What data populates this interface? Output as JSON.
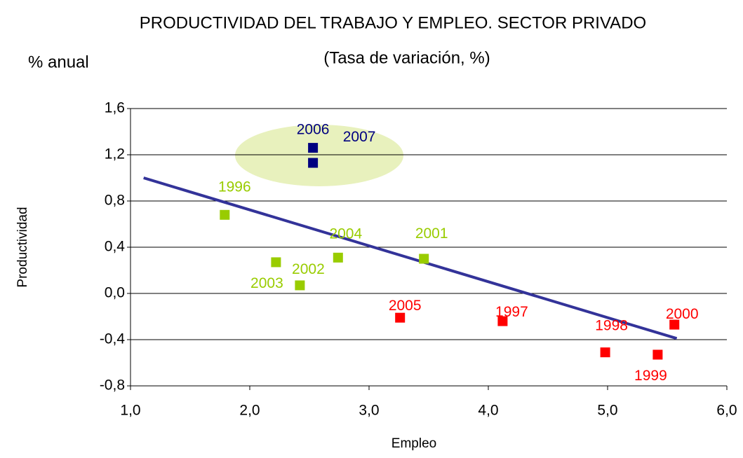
{
  "chart_data": {
    "type": "scatter",
    "title": "PRODUCTIVIDAD DEL TRABAJO Y EMPLEO. SECTOR PRIVADO",
    "subtitle": "(Tasa de variación, %)",
    "unit_label": "% anual",
    "x_label": "Empleo",
    "y_label": "Productividad",
    "xlim": [
      1,
      6
    ],
    "ylim": [
      -0.8,
      1.6
    ],
    "xticks": [
      {
        "value": 1,
        "label": "1,0"
      },
      {
        "value": 2,
        "label": "2,0"
      },
      {
        "value": 3,
        "label": "3,0"
      },
      {
        "value": 4,
        "label": "4,0"
      },
      {
        "value": 5,
        "label": "5,0"
      },
      {
        "value": 6,
        "label": "6,0"
      }
    ],
    "yticks": [
      {
        "value": -0.8,
        "label": "-0,8"
      },
      {
        "value": -0.4,
        "label": "-0,4"
      },
      {
        "value": 0,
        "label": "0,0"
      },
      {
        "value": 0.4,
        "label": "0,4"
      },
      {
        "value": 0.8,
        "label": "0,8"
      },
      {
        "value": 1.2,
        "label": "1,2"
      },
      {
        "value": 1.6,
        "label": "1,6"
      }
    ],
    "grid": true,
    "series": [
      {
        "color": "#99cc00",
        "labels": [
          "1996",
          "2003",
          "2002",
          "2004",
          "2001"
        ],
        "x": [
          1.79,
          2.22,
          2.42,
          2.74,
          3.46
        ],
        "values": [
          0.68,
          0.27,
          0.07,
          0.31,
          0.3
        ]
      },
      {
        "color": "#000080",
        "labels": [
          "2006",
          "2007"
        ],
        "x": [
          2.53,
          2.53
        ],
        "values": [
          1.26,
          1.13
        ]
      },
      {
        "color": "#ff0000",
        "labels": [
          "2005",
          "1997",
          "1998",
          "1999",
          "2000"
        ],
        "x": [
          3.26,
          4.12,
          4.98,
          5.42,
          5.56
        ],
        "values": [
          -0.21,
          -0.24,
          -0.51,
          -0.53,
          -0.27
        ]
      }
    ],
    "trendline": {
      "color": "#333399",
      "x": [
        1.11,
        5.58
      ],
      "values": [
        1.0,
        -0.39
      ]
    }
  }
}
